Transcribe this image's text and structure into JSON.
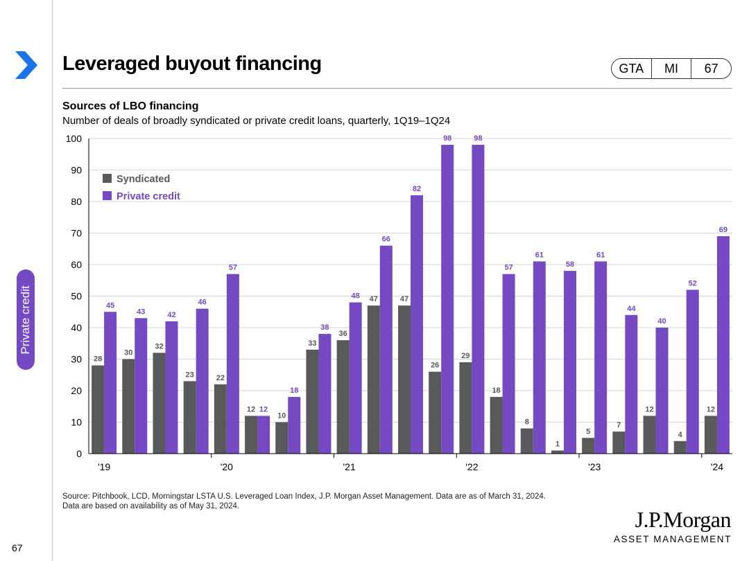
{
  "header": {
    "title": "Leveraged buyout financing",
    "tags": [
      "GTA",
      "MI",
      "67"
    ]
  },
  "side_tab": {
    "label": "Private credit"
  },
  "page_number": "67",
  "source": {
    "line1": "Source: Pitchbook, LCD, Morningstar LSTA U.S. Leveraged Loan Index, J.P. Morgan Asset Management. Data are as of March 31, 2024.",
    "line2": "Data are based on availability as of May 31, 2024."
  },
  "logo": {
    "main": "J.P.Morgan",
    "sub": "ASSET MANAGEMENT"
  },
  "colors": {
    "accent": "#7449c2",
    "syndicated": "#58595b",
    "private": "#7449c2"
  },
  "chart_data": {
    "type": "bar",
    "title": "Sources of LBO financing",
    "subtitle": "Number of deals of broadly syndicated or private credit loans, quarterly, 1Q19–1Q24",
    "quarters": [
      "1Q19",
      "2Q19",
      "3Q19",
      "4Q19",
      "1Q20",
      "2Q20",
      "3Q20",
      "4Q20",
      "1Q21",
      "2Q21",
      "3Q21",
      "4Q21",
      "1Q22",
      "2Q22",
      "3Q22",
      "4Q22",
      "1Q23",
      "2Q23",
      "3Q23",
      "4Q23",
      "1Q24"
    ],
    "year_labels": [
      {
        "label": "'19",
        "index": 0
      },
      {
        "label": "'20",
        "index": 4
      },
      {
        "label": "'21",
        "index": 8
      },
      {
        "label": "'22",
        "index": 12
      },
      {
        "label": "'23",
        "index": 16
      },
      {
        "label": "'24",
        "index": 20
      }
    ],
    "series": [
      {
        "name": "Syndicated",
        "color": "#58595b",
        "label_color": "#58595b",
        "values": [
          28,
          30,
          32,
          23,
          22,
          12,
          10,
          33,
          36,
          47,
          47,
          26,
          29,
          18,
          8,
          1,
          5,
          7,
          12,
          4,
          12
        ]
      },
      {
        "name": "Private credit",
        "color": "#7449c2",
        "label_color": "#7449c2",
        "values": [
          45,
          43,
          42,
          46,
          57,
          12,
          18,
          38,
          48,
          66,
          82,
          98,
          98,
          57,
          61,
          58,
          61,
          44,
          40,
          52,
          69
        ]
      }
    ],
    "yticks": [
      0,
      10,
      20,
      30,
      40,
      50,
      60,
      70,
      80,
      90,
      100
    ],
    "ylim": [
      0,
      100
    ],
    "grid": true,
    "legend": "top-left"
  }
}
